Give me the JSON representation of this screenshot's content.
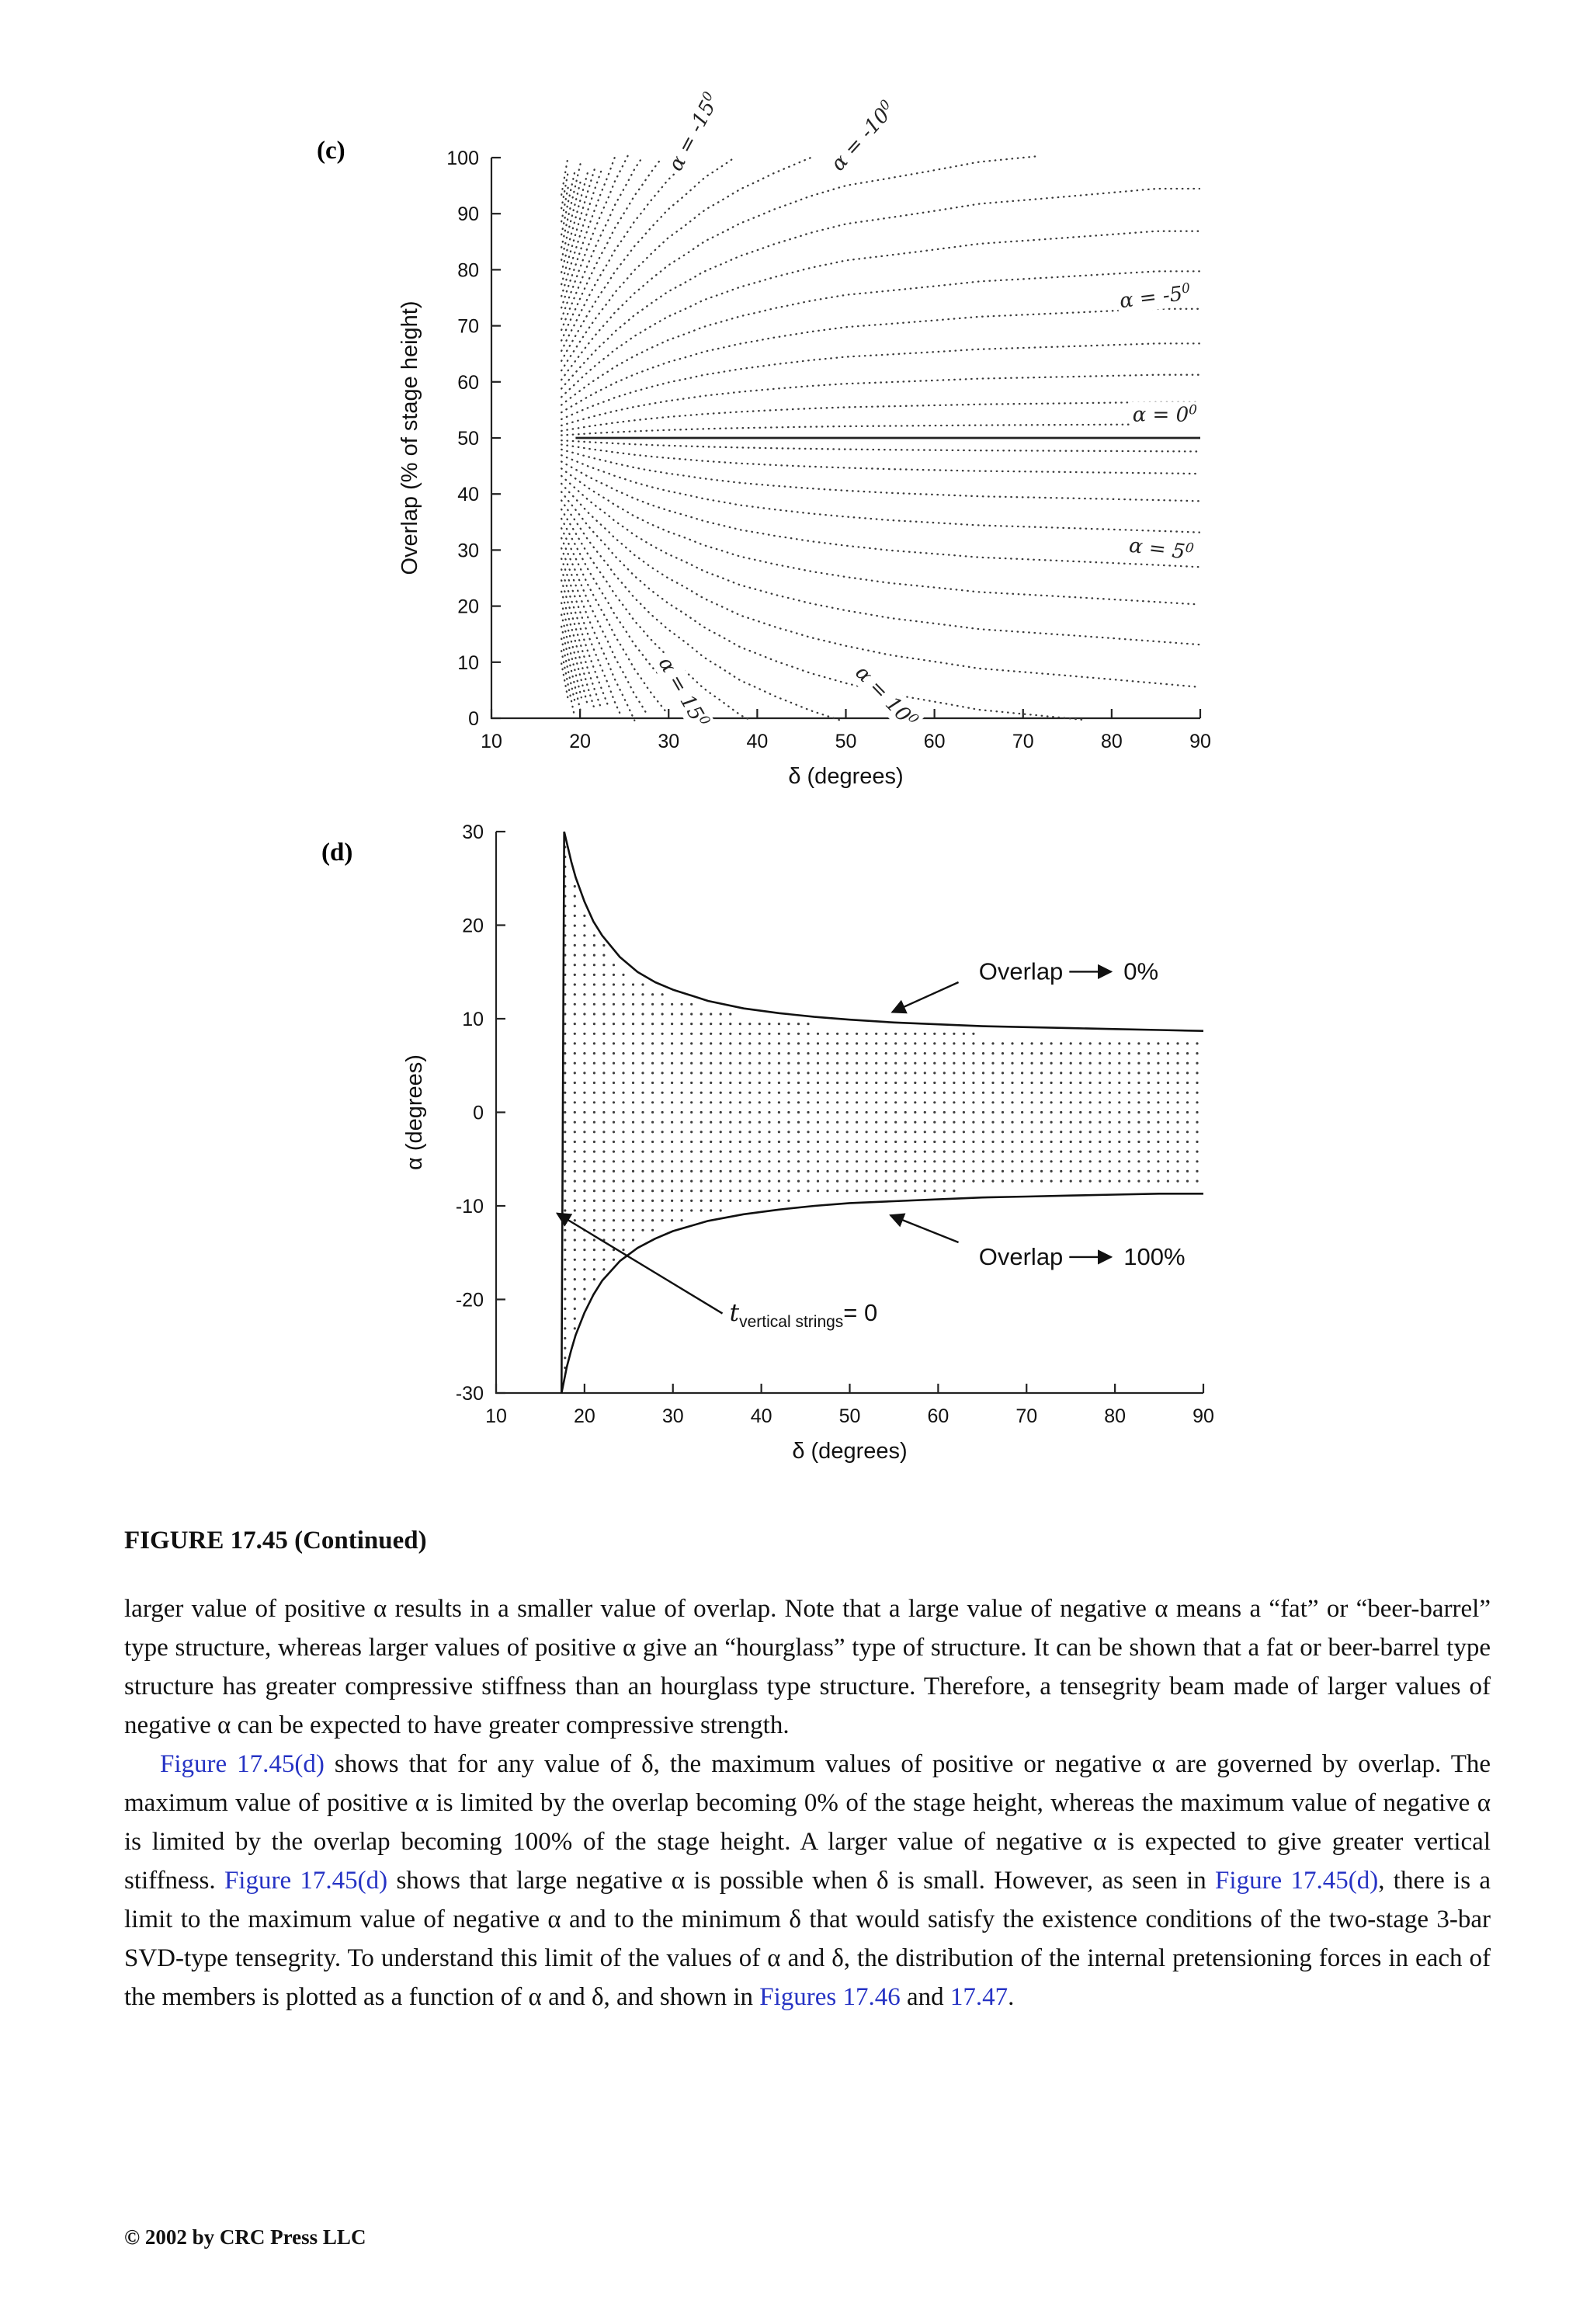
{
  "colors": {
    "link": "#2633c4",
    "axis": "#222222",
    "curve": "#111111"
  },
  "figure": {
    "panel_c_label": "(c)",
    "panel_d_label": "(d)",
    "caption": "FIGURE 17.45 (Continued)"
  },
  "chart_data": [
    {
      "id": "c",
      "type": "line",
      "title": "Contours of constant alpha: overlap vs delta for two-stage 3-bar SVD tensegrity",
      "xlabel": "δ (degrees)",
      "ylabel": "Overlap (% of stage height)",
      "xlim": [
        10,
        90
      ],
      "ylim": [
        0,
        100
      ],
      "x_ticks": [
        10,
        20,
        30,
        40,
        50,
        60,
        70,
        80,
        90
      ],
      "y_ticks": [
        0,
        10,
        20,
        30,
        40,
        50,
        60,
        70,
        80,
        90,
        100
      ],
      "grid": false,
      "delta_min": 17.9,
      "alpha_contours_deg": {
        "min": -25,
        "max": 25,
        "step": 1
      },
      "shape_exponent": 1.4,
      "solid_line": {
        "alpha": 0,
        "overlap": 50,
        "delta_start": 19.5,
        "delta_end": 90
      },
      "contour_labels": [
        {
          "base": "α = -15",
          "sup": "0",
          "delta": 33.5,
          "overlap": 104,
          "rot": -62
        },
        {
          "base": "α = -10",
          "sup": "0",
          "delta": 52.5,
          "overlap": 103,
          "rot": -48
        },
        {
          "base": "α = -5",
          "sup": "0",
          "delta": 85.0,
          "overlap": 74,
          "rot": -7
        },
        {
          "base": "α = 0",
          "sup": "0",
          "delta": 86.0,
          "overlap": 53,
          "rot": 0
        },
        {
          "base": "α = 5",
          "sup": "0",
          "delta": 85.5,
          "overlap": 29,
          "rot": 7
        },
        {
          "base": "α = 10",
          "sup": "0",
          "delta": 54.0,
          "overlap": 3,
          "rot": 46
        },
        {
          "base": "α = 15",
          "sup": "0",
          "delta": 31.0,
          "overlap": 4,
          "rot": 60
        }
      ]
    },
    {
      "id": "d",
      "type": "line",
      "title": "Feasible region of alpha vs delta bounded by overlap limits",
      "xlabel": "δ (degrees)",
      "ylabel": "α (degrees)",
      "xlim": [
        10,
        90
      ],
      "ylim": [
        -30,
        30
      ],
      "x_ticks": [
        10,
        20,
        30,
        40,
        50,
        60,
        70,
        80,
        90
      ],
      "y_ticks": [
        -30,
        -20,
        -10,
        0,
        10,
        20,
        30
      ],
      "grid": false,
      "curves": {
        "overlap_0": {
          "label": "Overlap -> 0%",
          "points": [
            [
              17.7,
              30
            ],
            [
              18,
              28.8
            ],
            [
              18.5,
              26.8
            ],
            [
              19,
              25.1
            ],
            [
              20,
              22.5
            ],
            [
              21,
              20.4
            ],
            [
              22,
              18.9
            ],
            [
              24,
              16.6
            ],
            [
              26,
              15.0
            ],
            [
              28,
              13.9
            ],
            [
              30,
              13.1
            ],
            [
              34,
              11.9
            ],
            [
              38,
              11.1
            ],
            [
              42,
              10.6
            ],
            [
              46,
              10.2
            ],
            [
              50,
              9.9
            ],
            [
              55,
              9.6
            ],
            [
              60,
              9.4
            ],
            [
              65,
              9.2
            ],
            [
              70,
              9.1
            ],
            [
              75,
              9.0
            ],
            [
              80,
              8.9
            ],
            [
              85,
              8.8
            ],
            [
              90,
              8.7
            ]
          ]
        },
        "overlap_100": {
          "label": "Overlap -> 100%",
          "points": [
            [
              17.4,
              -30
            ],
            [
              18,
              -27.2
            ],
            [
              18.5,
              -25.4
            ],
            [
              19,
              -23.8
            ],
            [
              20,
              -21.4
            ],
            [
              21,
              -19.5
            ],
            [
              22,
              -18.0
            ],
            [
              24,
              -15.9
            ],
            [
              26,
              -14.5
            ],
            [
              28,
              -13.5
            ],
            [
              30,
              -12.7
            ],
            [
              34,
              -11.6
            ],
            [
              38,
              -10.9
            ],
            [
              42,
              -10.4
            ],
            [
              46,
              -10.0
            ],
            [
              50,
              -9.7
            ],
            [
              55,
              -9.5
            ],
            [
              60,
              -9.3
            ],
            [
              65,
              -9.1
            ],
            [
              70,
              -9.0
            ],
            [
              75,
              -8.9
            ],
            [
              80,
              -8.8
            ],
            [
              85,
              -8.7
            ],
            [
              90,
              -8.7
            ]
          ]
        }
      },
      "annotations": {
        "overlap_0": {
          "prefix": "Overlap",
          "suffix": "0%",
          "tx": 64.6,
          "ty": 14.2,
          "arrow": [
            62.3,
            13.9,
            54.8,
            10.7
          ]
        },
        "overlap_100": {
          "prefix": "Overlap",
          "suffix": "100%",
          "tx": 64.6,
          "ty": -16.3,
          "arrow": [
            62.3,
            -13.9,
            54.6,
            -11.0
          ]
        },
        "t_vertical": {
          "main": "t",
          "sub": "vertical strings",
          "rest": "= 0",
          "tx": 36.4,
          "ty": -22.3,
          "arrow": [
            35.6,
            -21.5,
            16.9,
            -10.8
          ]
        }
      }
    }
  ],
  "text": {
    "para1": [
      {
        "t": "larger value of positive α results in a smaller value of overlap. Note that a large value of negative α means a “fat” or “beer-barrel” type structure, whereas larger values of positive α give an “hourglass” type of structure. It can be shown that a fat or beer-barrel type structure has greater compressive stiffness than an hourglass type structure. Therefore, a tensegrity beam made of larger values of negative α can be expected to have greater compressive strength."
      }
    ],
    "para2": [
      {
        "t": "Figure 17.45(d)",
        "link": true
      },
      {
        "t": " shows that for any value of δ, the maximum values of positive or negative α are governed by overlap. The maximum value of positive α is limited by the overlap becoming 0% of the stage height, whereas the maximum value of negative α is limited by the overlap becoming 100% of the stage height. A larger value of negative α is expected to give greater vertical stiffness. "
      },
      {
        "t": "Figure 17.45(d)",
        "link": true
      },
      {
        "t": " shows that large negative α is possible when δ is small. However, as seen in "
      },
      {
        "t": "Figure 17.45(d)",
        "link": true
      },
      {
        "t": ", there is a limit to the maximum value of negative α and to the minimum δ that would satisfy the existence conditions of the two-stage 3-bar SVD-type tensegrity. To understand this limit of the values of α and δ, the distribution of the internal pretensioning forces in each of the members is plotted as a function of α and δ, and shown in "
      },
      {
        "t": "Figures 17.46",
        "link": true
      },
      {
        "t": " and "
      },
      {
        "t": "17.47",
        "link": true
      },
      {
        "t": "."
      }
    ],
    "footer": "© 2002 by CRC Press LLC"
  }
}
